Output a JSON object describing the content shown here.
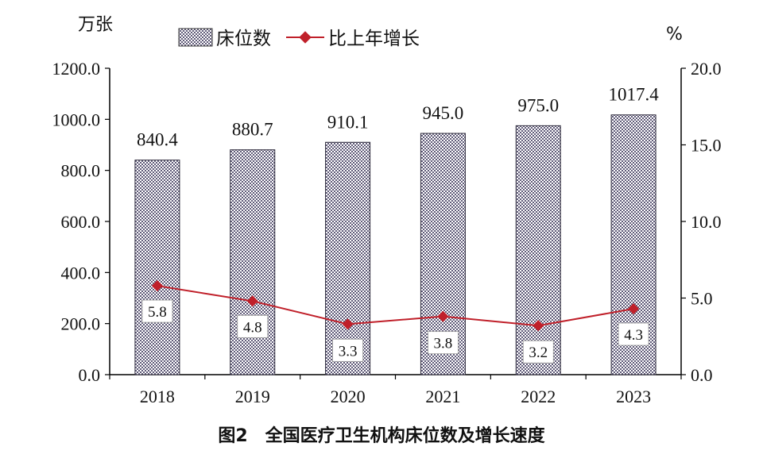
{
  "chart_data": {
    "type": "bar",
    "title": "图2　全国医疗卫生机构床位数及增长速度",
    "left_unit": "万张",
    "right_unit": "%",
    "categories": [
      "2018",
      "2019",
      "2020",
      "2021",
      "2022",
      "2023"
    ],
    "series": [
      {
        "name": "床位数",
        "type": "bar",
        "axis": "left",
        "values": [
          840.4,
          880.7,
          910.1,
          945.0,
          975.0,
          1017.4
        ],
        "labels": [
          "840.4",
          "880.7",
          "910.1",
          "945.0",
          "975.0",
          "1017.4"
        ]
      },
      {
        "name": "比上年增长",
        "type": "line",
        "axis": "right",
        "values": [
          5.8,
          4.8,
          3.3,
          3.8,
          3.2,
          4.3
        ],
        "labels": [
          "5.8",
          "4.8",
          "3.3",
          "3.8",
          "3.2",
          "4.3"
        ]
      }
    ],
    "ylim_left": [
      0,
      1200
    ],
    "ylim_right": [
      0,
      20
    ],
    "yticks_left": [
      "0.0",
      "200.0",
      "400.0",
      "600.0",
      "800.0",
      "1000.0",
      "1200.0"
    ],
    "yticks_right": [
      "0.0",
      "5.0",
      "10.0",
      "15.0",
      "20.0"
    ],
    "legend_position": "top",
    "grid": false,
    "colors": {
      "bar_fill": "#7c7890",
      "line": "#c0202a",
      "axis": "#000000"
    }
  }
}
